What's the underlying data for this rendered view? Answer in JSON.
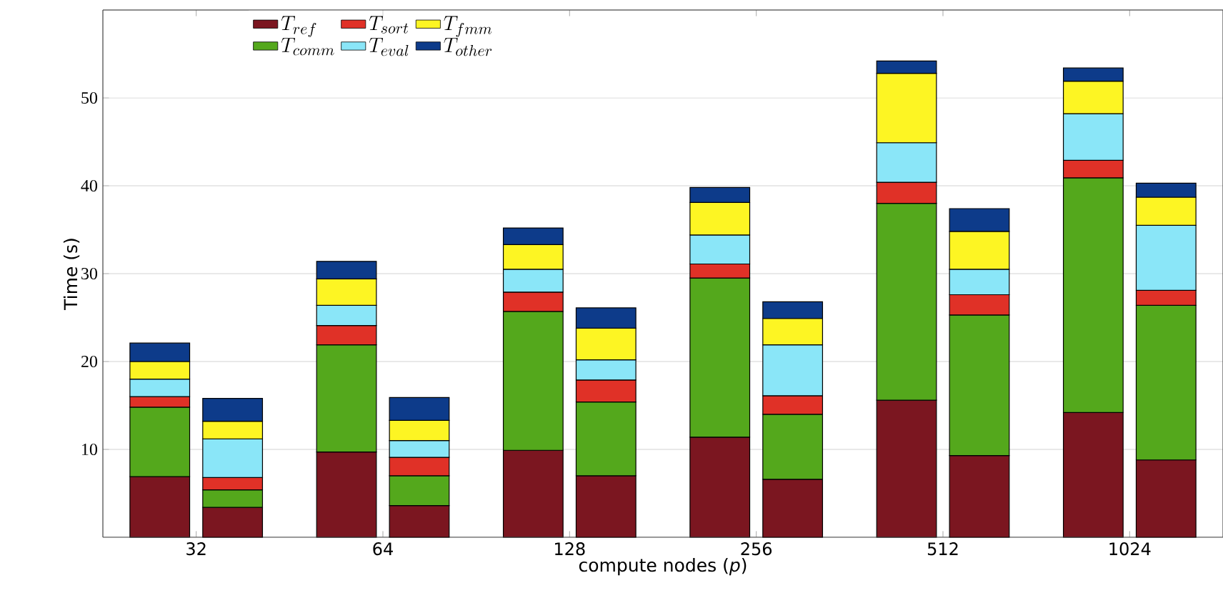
{
  "chart_data": [
    {
      "type": "bar",
      "stacked": true,
      "xlabel": "compute nodes (*p*)",
      "ylabel": "Time (s)",
      "categories": [
        "32",
        "64",
        "128",
        "256",
        "512",
        "1024"
      ],
      "ylim": [
        0,
        60
      ],
      "yticks": [
        10,
        20,
        30,
        40,
        50
      ],
      "grid": "y",
      "legend": "top left",
      "series": [
        {
          "name": "T_{ref}",
          "color": "#7b1620",
          "values": [
            6.9,
            9.7,
            9.9,
            11.4,
            15.6,
            14.2
          ]
        },
        {
          "name": "T_{comm}",
          "color": "#54a81c",
          "values": [
            7.9,
            12.2,
            15.8,
            18.1,
            22.4,
            26.7
          ]
        },
        {
          "name": "T_{sort}",
          "color": "#e03127",
          "values": [
            1.2,
            2.2,
            2.2,
            1.6,
            2.4,
            2.0
          ]
        },
        {
          "name": "T_{eval}",
          "color": "#8ae6f8",
          "values": [
            2.0,
            2.3,
            2.6,
            3.3,
            4.5,
            5.3
          ]
        },
        {
          "name": "T_{fmm}",
          "color": "#fdf523",
          "values": [
            2.0,
            3.0,
            2.8,
            3.7,
            7.9,
            3.7
          ]
        },
        {
          "name": "T_{other}",
          "color": "#0d3b8a",
          "values": [
            2.1,
            2.0,
            1.9,
            1.7,
            1.4,
            1.5
          ]
        }
      ]
    },
    {
      "type": "bar",
      "stacked": true,
      "tick_labels": false,
      "categories": [
        "32",
        "64",
        "128",
        "256",
        "512",
        "1024"
      ],
      "ylim": [
        0,
        60
      ],
      "series": [
        {
          "color": "#7b1620",
          "values": [
            3.4,
            3.6,
            7.0,
            6.6,
            9.3,
            8.8
          ]
        },
        {
          "color": "#54a81c",
          "values": [
            2.0,
            3.4,
            8.4,
            7.4,
            16.0,
            17.6
          ]
        },
        {
          "color": "#e03127",
          "values": [
            1.4,
            2.1,
            2.5,
            2.1,
            2.3,
            1.7
          ]
        },
        {
          "color": "#8ae6f8",
          "values": [
            4.4,
            1.9,
            2.3,
            5.8,
            2.9,
            7.4
          ]
        },
        {
          "color": "#fdf523",
          "values": [
            2.0,
            2.3,
            3.6,
            3.0,
            4.3,
            3.2
          ]
        },
        {
          "color": "#0d3b8a",
          "values": [
            2.6,
            2.6,
            2.3,
            1.9,
            2.6,
            1.6
          ]
        }
      ]
    }
  ]
}
